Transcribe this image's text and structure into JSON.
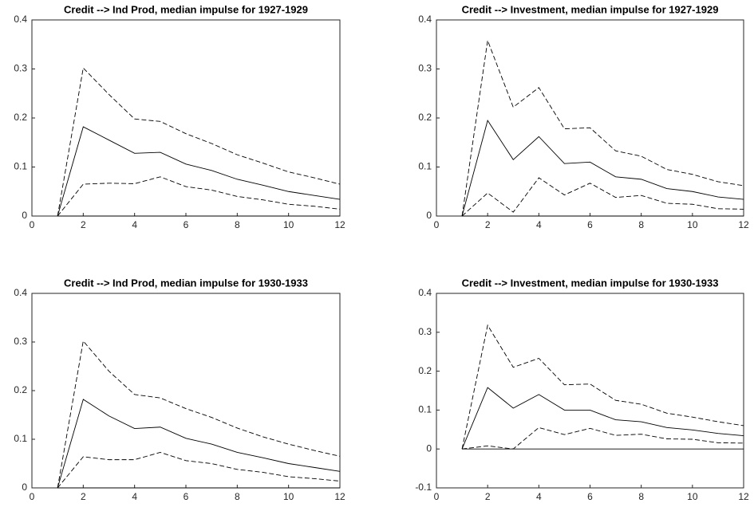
{
  "chart_data": [
    {
      "type": "line",
      "title": "Credit --> Ind Prod, median impulse for 1927-1929",
      "x": [
        1,
        2,
        3,
        4,
        5,
        6,
        7,
        8,
        9,
        10,
        11,
        12
      ],
      "series": [
        {
          "color": "#000000",
          "dash": false,
          "values": [
            0,
            0.182,
            0.155,
            0.128,
            0.13,
            0.106,
            0.093,
            0.075,
            0.063,
            0.05,
            0.042,
            0.034
          ]
        },
        {
          "color": "#000000",
          "dash": true,
          "values": [
            0,
            0.302,
            0.248,
            0.198,
            0.193,
            0.168,
            0.148,
            0.125,
            0.108,
            0.09,
            0.078,
            0.065
          ]
        },
        {
          "color": "#000000",
          "dash": true,
          "values": [
            0,
            0.065,
            0.067,
            0.066,
            0.08,
            0.06,
            0.053,
            0.04,
            0.033,
            0.024,
            0.02,
            0.014
          ]
        },
        {
          "color": "#000000",
          "dash": false,
          "values": [
            0,
            0,
            0,
            0,
            0,
            0,
            0,
            0,
            0,
            0,
            0,
            0
          ]
        }
      ],
      "xlim": [
        0,
        12
      ],
      "xticks": [
        0,
        2,
        4,
        6,
        8,
        10,
        12
      ],
      "ylim": [
        0,
        0.4
      ],
      "yticks": [
        0,
        0.1,
        0.2,
        0.3,
        0.4
      ],
      "grid": false
    },
    {
      "type": "line",
      "title": "Credit --> Investment, median impulse for 1927-1929",
      "x": [
        1,
        2,
        3,
        4,
        5,
        6,
        7,
        8,
        9,
        10,
        11,
        12
      ],
      "series": [
        {
          "color": "#000000",
          "dash": false,
          "values": [
            0,
            0.195,
            0.115,
            0.162,
            0.107,
            0.11,
            0.08,
            0.075,
            0.056,
            0.05,
            0.039,
            0.034
          ]
        },
        {
          "color": "#000000",
          "dash": true,
          "values": [
            0,
            0.358,
            0.222,
            0.262,
            0.178,
            0.18,
            0.133,
            0.122,
            0.095,
            0.085,
            0.07,
            0.062
          ]
        },
        {
          "color": "#000000",
          "dash": true,
          "values": [
            0,
            0.047,
            0.008,
            0.078,
            0.043,
            0.067,
            0.038,
            0.042,
            0.026,
            0.024,
            0.015,
            0.014
          ]
        },
        {
          "color": "#000000",
          "dash": false,
          "values": [
            0,
            0,
            0,
            0,
            0,
            0,
            0,
            0,
            0,
            0,
            0,
            0
          ]
        }
      ],
      "xlim": [
        0,
        12
      ],
      "xticks": [
        0,
        2,
        4,
        6,
        8,
        10,
        12
      ],
      "ylim": [
        0,
        0.4
      ],
      "yticks": [
        0,
        0.1,
        0.2,
        0.3,
        0.4
      ],
      "grid": false
    },
    {
      "type": "line",
      "title": "Credit --> Ind Prod, median impulse for 1930-1933",
      "x": [
        1,
        2,
        3,
        4,
        5,
        6,
        7,
        8,
        9,
        10,
        11,
        12
      ],
      "series": [
        {
          "color": "#000000",
          "dash": false,
          "values": [
            0,
            0.182,
            0.148,
            0.122,
            0.125,
            0.102,
            0.09,
            0.073,
            0.062,
            0.05,
            0.042,
            0.034
          ]
        },
        {
          "color": "#000000",
          "dash": true,
          "values": [
            0,
            0.302,
            0.24,
            0.192,
            0.185,
            0.163,
            0.145,
            0.123,
            0.105,
            0.09,
            0.077,
            0.065
          ]
        },
        {
          "color": "#000000",
          "dash": true,
          "values": [
            0,
            0.064,
            0.058,
            0.058,
            0.073,
            0.056,
            0.05,
            0.038,
            0.032,
            0.023,
            0.019,
            0.014
          ]
        },
        {
          "color": "#000000",
          "dash": false,
          "values": [
            0,
            0,
            0,
            0,
            0,
            0,
            0,
            0,
            0,
            0,
            0,
            0
          ]
        }
      ],
      "xlim": [
        0,
        12
      ],
      "xticks": [
        0,
        2,
        4,
        6,
        8,
        10,
        12
      ],
      "ylim": [
        0,
        0.4
      ],
      "yticks": [
        0,
        0.1,
        0.2,
        0.3,
        0.4
      ],
      "grid": false
    },
    {
      "type": "line",
      "title": "Credit --> Investment, median impulse for 1930-1933",
      "x": [
        1,
        2,
        3,
        4,
        5,
        6,
        7,
        8,
        9,
        10,
        11,
        12
      ],
      "series": [
        {
          "color": "#000000",
          "dash": false,
          "values": [
            0,
            0.158,
            0.105,
            0.14,
            0.1,
            0.1,
            0.075,
            0.07,
            0.055,
            0.049,
            0.04,
            0.034
          ]
        },
        {
          "color": "#000000",
          "dash": true,
          "values": [
            0,
            0.318,
            0.21,
            0.233,
            0.165,
            0.167,
            0.125,
            0.115,
            0.092,
            0.082,
            0.07,
            0.06
          ]
        },
        {
          "color": "#000000",
          "dash": true,
          "values": [
            0,
            0.008,
            0,
            0.055,
            0.037,
            0.053,
            0.035,
            0.038,
            0.026,
            0.025,
            0.016,
            0.015
          ]
        },
        {
          "color": "#000000",
          "dash": false,
          "values": [
            0,
            0,
            0,
            0,
            0,
            0,
            0,
            0,
            0,
            0,
            0,
            0
          ]
        }
      ],
      "xlim": [
        0,
        12
      ],
      "xticks": [
        0,
        2,
        4,
        6,
        8,
        10,
        12
      ],
      "ylim": [
        -0.1,
        0.4
      ],
      "yticks": [
        -0.1,
        0,
        0.1,
        0.2,
        0.3,
        0.4
      ],
      "grid": false
    }
  ]
}
